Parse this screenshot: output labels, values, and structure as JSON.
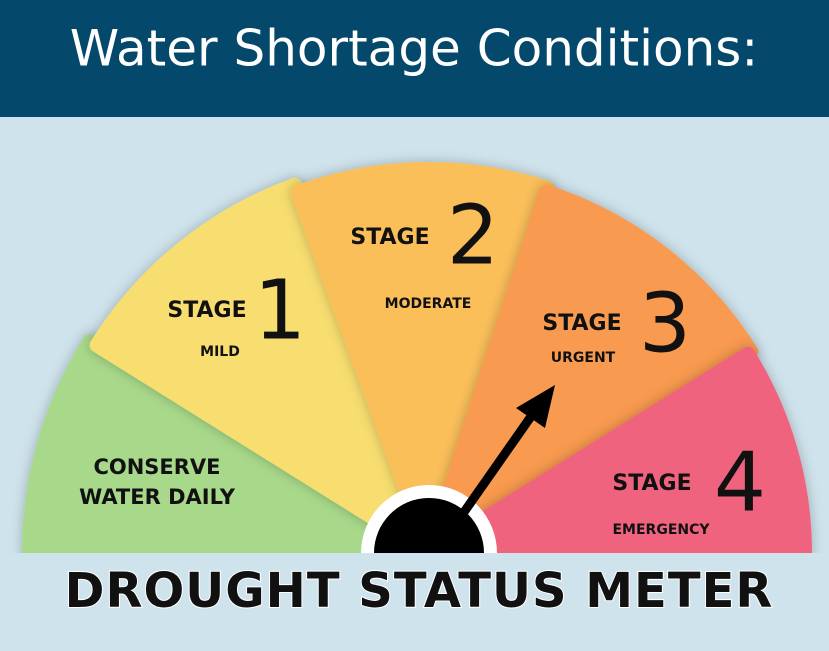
{
  "header": {
    "title": "Water Shortage Conditions:"
  },
  "gauge": {
    "segments": [
      {
        "label_lines": [
          "CONSERVE",
          "WATER DAILY"
        ]
      },
      {
        "stage_label": "STAGE",
        "stage_number": "1",
        "description": "MILD"
      },
      {
        "stage_label": "STAGE",
        "stage_number": "2",
        "description": "MODERATE"
      },
      {
        "stage_label": "STAGE",
        "stage_number": "3",
        "description": "URGENT"
      },
      {
        "stage_label": "STAGE",
        "stage_number": "4",
        "description": "EMERGENCY"
      }
    ]
  },
  "footer": {
    "title": "DROUGHT STATUS METER"
  }
}
